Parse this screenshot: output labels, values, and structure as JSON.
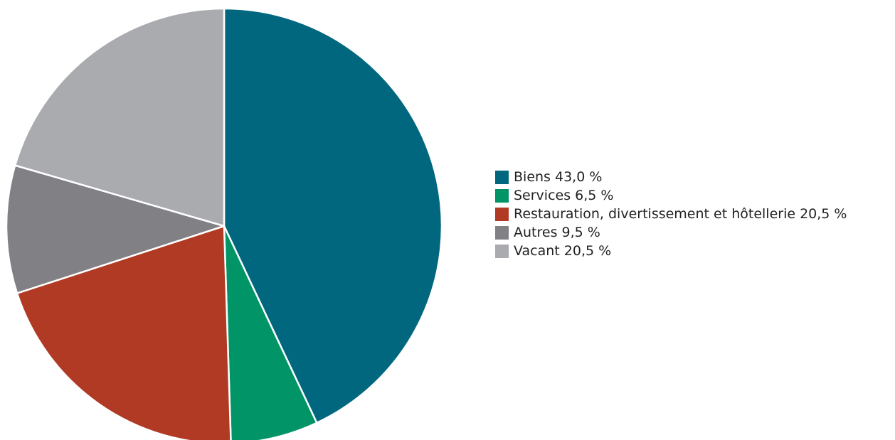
{
  "chart_data": {
    "type": "pie",
    "title": "",
    "slices": [
      {
        "label": "Biens 43,0 %",
        "value": 43.0,
        "color": "#00677f"
      },
      {
        "label": "Services 6,5 %",
        "value": 6.5,
        "color": "#009466"
      },
      {
        "label": "Restauration, divertissement et hôtellerie 20,5 %",
        "value": 20.5,
        "color": "#b03a24"
      },
      {
        "label": "Autres 9,5 %",
        "value": 9.5,
        "color": "#808085"
      },
      {
        "label": "Vacant 20,5 %",
        "value": 20.5,
        "color": "#aaabaf"
      }
    ],
    "start_angle": "12 o'clock",
    "direction": "clockwise",
    "slice_border_color": "#ffffff",
    "legend_position": "right"
  }
}
